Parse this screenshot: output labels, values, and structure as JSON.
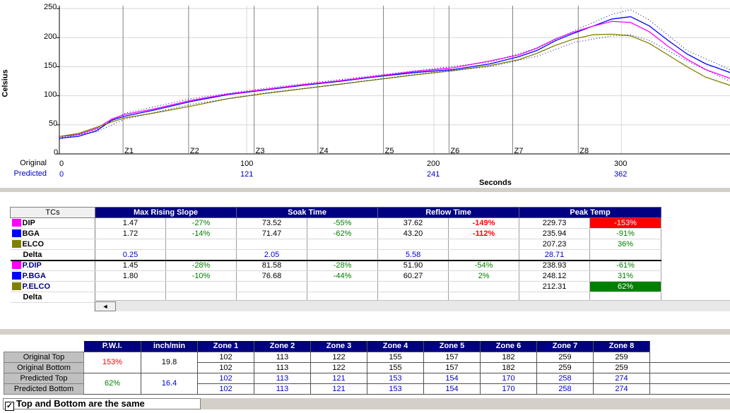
{
  "chart_data": {
    "type": "line",
    "ylabel": "Celsius",
    "xlabel": "Seconds",
    "ylim": [
      0,
      255
    ],
    "xlim": [
      0,
      358
    ],
    "yticks": [
      "250",
      "200",
      "150",
      "100",
      "50",
      "0"
    ],
    "original_xticks": [
      "0",
      "100",
      "200",
      "300"
    ],
    "predicted_xticks": [
      "0",
      "121",
      "241",
      "362"
    ],
    "row_labels": {
      "original": "Original",
      "predicted": "Predicted"
    },
    "zone_lines": [
      {
        "label": "Z1",
        "x": 34
      },
      {
        "label": "Z2",
        "x": 69
      },
      {
        "label": "Z3",
        "x": 104
      },
      {
        "label": "Z4",
        "x": 138
      },
      {
        "label": "Z5",
        "x": 173
      },
      {
        "label": "Z6",
        "x": 208
      },
      {
        "label": "Z7",
        "x": 242
      },
      {
        "label": "Z8",
        "x": 277
      }
    ],
    "series": [
      {
        "color": "#0000ff",
        "x": [
          0,
          10,
          20,
          28,
          35,
          50,
          70,
          90,
          110,
          130,
          150,
          170,
          190,
          210,
          230,
          245,
          255,
          265,
          275,
          285,
          295,
          305,
          315,
          325,
          335,
          345,
          358
        ],
        "y": [
          27,
          30,
          40,
          58,
          65,
          75,
          90,
          102,
          110,
          118,
          125,
          133,
          140,
          145,
          155,
          167,
          178,
          195,
          208,
          220,
          232,
          236,
          220,
          195,
          172,
          155,
          140
        ]
      },
      {
        "color": "#ff00ff",
        "x": [
          0,
          10,
          20,
          28,
          35,
          50,
          70,
          90,
          110,
          130,
          150,
          170,
          190,
          210,
          230,
          245,
          255,
          265,
          275,
          285,
          295,
          305,
          315,
          325,
          335,
          345,
          358
        ],
        "y": [
          30,
          33,
          44,
          60,
          68,
          77,
          92,
          103,
          111,
          119,
          126,
          134,
          142,
          148,
          160,
          170,
          182,
          198,
          210,
          220,
          228,
          226,
          210,
          185,
          163,
          145,
          130
        ]
      },
      {
        "color": "#808000",
        "x": [
          0,
          10,
          20,
          28,
          35,
          50,
          70,
          90,
          110,
          130,
          150,
          170,
          190,
          210,
          230,
          245,
          255,
          265,
          275,
          285,
          295,
          305,
          315,
          325,
          335,
          345,
          358
        ],
        "y": [
          30,
          35,
          46,
          55,
          62,
          70,
          82,
          95,
          104,
          112,
          120,
          128,
          136,
          143,
          152,
          162,
          173,
          187,
          198,
          205,
          206,
          203,
          190,
          170,
          150,
          132,
          118
        ]
      },
      {
        "color": "#000080",
        "dashed": true,
        "x": [
          0,
          20,
          35,
          70,
          110,
          150,
          190,
          230,
          255,
          275,
          295,
          305,
          315,
          335,
          358
        ],
        "y": [
          25,
          42,
          70,
          95,
          113,
          128,
          143,
          158,
          182,
          212,
          240,
          248,
          230,
          178,
          145
        ]
      },
      {
        "color": "#000080",
        "dashed": true,
        "x": [
          0,
          20,
          35,
          70,
          110,
          150,
          190,
          230,
          255,
          275,
          295,
          305,
          315,
          335,
          358
        ],
        "y": [
          28,
          38,
          60,
          85,
          105,
          120,
          137,
          150,
          168,
          192,
          203,
          205,
          195,
          160,
          125
        ]
      }
    ]
  },
  "tc_table": {
    "tcs_header": "TCs",
    "columns": [
      "Max Rising Slope",
      "Soak Time",
      "Reflow Time",
      "Peak Temp"
    ],
    "rows": [
      {
        "name": "DIP",
        "swatch": "#ff00ff",
        "pred": false,
        "cells": [
          "1.47",
          "-27%",
          "73.52",
          "-55%",
          "37.62",
          "-149%",
          "229.73",
          "-153%"
        ],
        "styles": [
          "",
          "",
          "",
          "",
          "",
          "red",
          "",
          "bad"
        ]
      },
      {
        "name": "BGA",
        "swatch": "#0000ff",
        "pred": false,
        "cells": [
          "1.72",
          "-14%",
          "71.47",
          "-62%",
          "43.20",
          "-112%",
          "235.94",
          "-91%"
        ],
        "styles": [
          "",
          "",
          "",
          "",
          "",
          "red",
          "",
          ""
        ]
      },
      {
        "name": "ELCO",
        "swatch": "#808000",
        "pred": false,
        "cells": [
          "",
          "",
          "",
          "",
          "",
          "",
          "207.23",
          "36%"
        ],
        "styles": [
          "",
          "",
          "",
          "",
          "",
          "",
          "",
          ""
        ]
      },
      {
        "name": "Delta",
        "swatch": "",
        "pred": false,
        "cells": [
          "0.25",
          "",
          "2.05",
          "",
          "5.58",
          "",
          "28.71",
          ""
        ],
        "styles": [
          "blue",
          "",
          "blue",
          "",
          "blue",
          "",
          "blue",
          ""
        ]
      },
      {
        "name": "P.DIP",
        "swatch": "#ff00ff",
        "pred": true,
        "cells": [
          "1.45",
          "-28%",
          "81.58",
          "-28%",
          "51.90",
          "-54%",
          "238.93",
          "-61%"
        ],
        "styles": [
          "",
          "",
          "",
          "",
          "",
          "",
          "",
          ""
        ]
      },
      {
        "name": "P.BGA",
        "swatch": "#0000ff",
        "pred": true,
        "cells": [
          "1.80",
          "-10%",
          "76.68",
          "-44%",
          "60.27",
          "2%",
          "248.12",
          "31%"
        ],
        "styles": [
          "",
          "",
          "",
          "",
          "",
          "",
          "",
          ""
        ]
      },
      {
        "name": "P.ELCO",
        "swatch": "#808000",
        "pred": true,
        "cells": [
          "",
          "",
          "",
          "",
          "",
          "",
          "212.31",
          "62%"
        ],
        "styles": [
          "",
          "",
          "",
          "",
          "",
          "",
          "",
          "good"
        ]
      },
      {
        "name": "Delta",
        "swatch": "",
        "pred": false,
        "cells": [
          "",
          "",
          "",
          "",
          "",
          "",
          "",
          ""
        ],
        "styles": [
          "",
          "",
          "",
          "",
          "",
          "",
          "",
          ""
        ]
      }
    ],
    "scroll_arrow": "◄"
  },
  "zone_table": {
    "headers": [
      "P.W.I.",
      "inch/min",
      "Zone 1",
      "Zone 2",
      "Zone 3",
      "Zone 4",
      "Zone 5",
      "Zone 6",
      "Zone 7",
      "Zone 8"
    ],
    "row_labels": [
      "Original Top",
      "Original Bottom",
      "Predicted Top",
      "Predicted Bottom"
    ],
    "original_pwi": "153%",
    "original_speed": "19.8",
    "predicted_pwi": "62%",
    "predicted_speed": "16.4",
    "rows": [
      [
        "102",
        "113",
        "122",
        "155",
        "157",
        "182",
        "259",
        "259"
      ],
      [
        "102",
        "113",
        "122",
        "155",
        "157",
        "182",
        "259",
        "259"
      ],
      [
        "102",
        "113",
        "121",
        "153",
        "154",
        "170",
        "258",
        "274"
      ],
      [
        "102",
        "113",
        "121",
        "153",
        "154",
        "170",
        "258",
        "274"
      ]
    ],
    "same_checkbox_label": "Top and Bottom are the same",
    "same_checked": "✓"
  }
}
